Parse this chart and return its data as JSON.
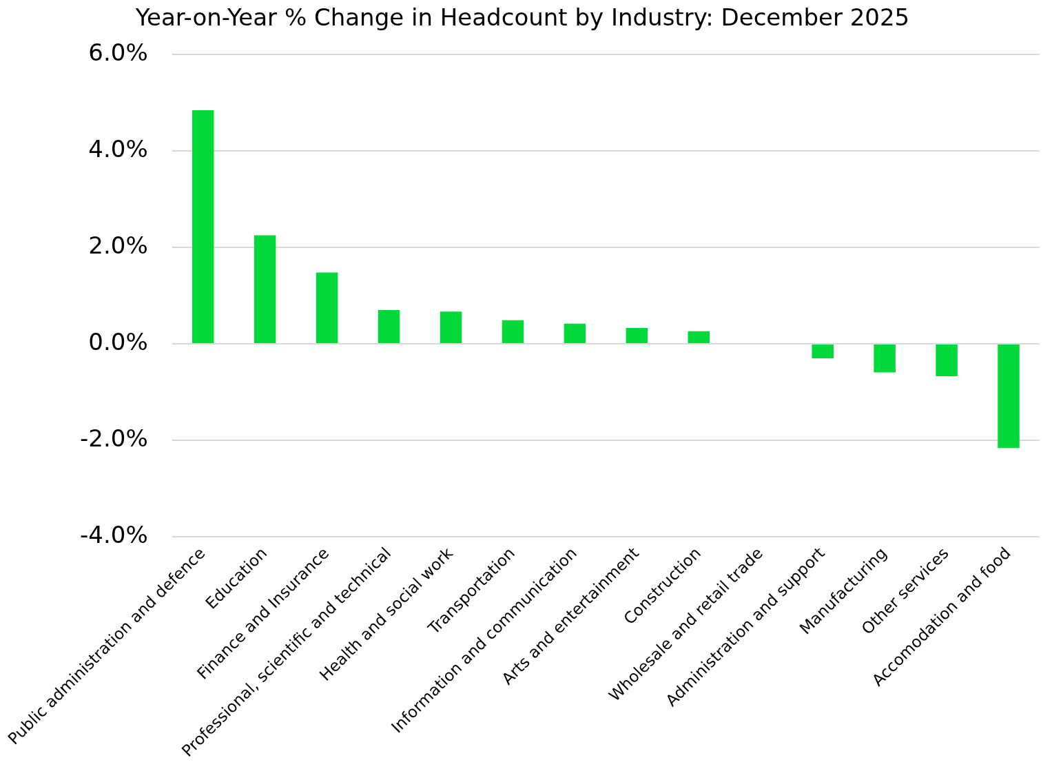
{
  "chart_data": {
    "type": "bar",
    "title": "Year-on-Year % Change in Headcount by Industry: December 2025",
    "categories": [
      "Public administration and defence",
      "Education",
      "Finance and Insurance",
      "Professional, scientific and technical",
      "Health and social work",
      "Transportation",
      "Information and communication",
      "Arts and entertainment",
      "Construction",
      "Wholesale and retail trade",
      "Administration and support",
      "Manufacturing",
      "Other services",
      "Accomodation and food"
    ],
    "values": [
      4.84,
      2.25,
      1.48,
      0.7,
      0.67,
      0.49,
      0.42,
      0.33,
      0.26,
      0.0,
      -0.3,
      -0.59,
      -0.67,
      -2.16
    ],
    "color": "#00d83c",
    "ylim": [
      -4,
      6
    ],
    "yticks": [
      {
        "value": -4,
        "label": "-4.0%"
      },
      {
        "value": -2,
        "label": "-2.0%"
      },
      {
        "value": 0,
        "label": "0.0%"
      },
      {
        "value": 2,
        "label": "2.0%"
      },
      {
        "value": 4,
        "label": "4.0%"
      },
      {
        "value": 6,
        "label": "6.0%"
      }
    ],
    "grid": "y",
    "legend": false
  }
}
